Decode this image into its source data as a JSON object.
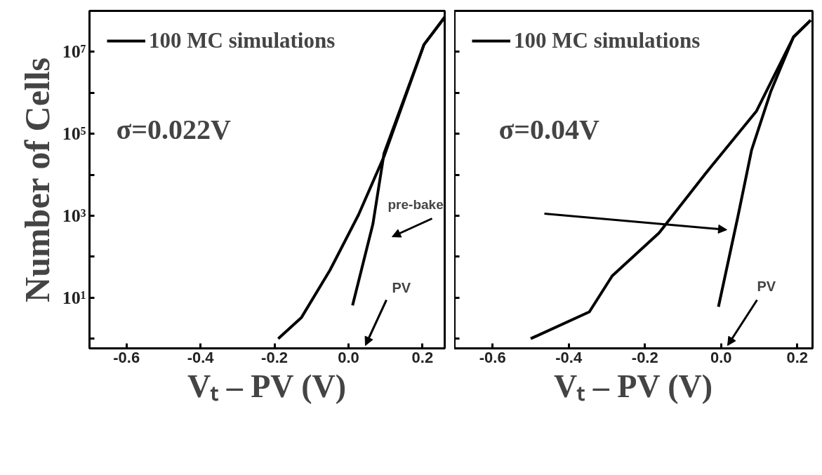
{
  "chart_data": [
    {
      "type": "line",
      "xlabel": "Vₜ – PV (V)",
      "ylabel": "Number of Cells",
      "log": "y",
      "legend": "top left",
      "grid": false,
      "marker": "none",
      "line_style": "solid",
      "xlim": [
        -0.7,
        0.26
      ],
      "xticks": [
        -0.6,
        -0.4,
        -0.2,
        {
          "value": 0,
          "label": "0.0"
        },
        0.2
      ],
      "ylim": [
        0.58,
        100000000
      ],
      "yticks": [
        {
          "value": 1,
          "label": null
        },
        {
          "value": 10,
          "label": "10¹"
        },
        {
          "value": 100,
          "label": null
        },
        {
          "value": 1000,
          "label": "10³"
        },
        {
          "value": 10000,
          "label": null
        },
        {
          "value": 100000,
          "label": "10⁵"
        },
        {
          "value": 1000000,
          "label": null
        },
        {
          "value": 10000000,
          "label": "10⁷"
        }
      ],
      "series": [
        {
          "name": "100 MC simulations",
          "color": "#000000",
          "x": [
            -0.19,
            -0.127,
            -0.05,
            0.027,
            0.096,
            0.204,
            0.26
          ],
          "values": [
            1,
            3.3,
            47,
            1050,
            28000,
            15000000,
            70000000
          ]
        },
        {
          "color": "#000000",
          "x": [
            0.011,
            0.066,
            0.096,
            0.204,
            0.26
          ],
          "values": [
            6.5,
            630,
            33000,
            15000000,
            70000000
          ]
        }
      ],
      "annotations": [
        "σ=0.022V",
        "pre-bake",
        "PV"
      ]
    },
    {
      "type": "line",
      "xlabel": "Vₜ – PV (V)",
      "log": "y",
      "legend": "top left",
      "grid": false,
      "marker": "none",
      "line_style": "solid",
      "tick_labels": "x",
      "xlim": [
        -0.7,
        0.24
      ],
      "xticks": [
        -0.6,
        -0.4,
        -0.2,
        {
          "value": 0,
          "label": "0.0"
        },
        0.2
      ],
      "ylim": [
        0.58,
        100000000
      ],
      "yticks": [
        {
          "value": 1,
          "label": null
        },
        {
          "value": 10,
          "label": null
        },
        {
          "value": 100,
          "label": null
        },
        {
          "value": 1000,
          "label": null
        },
        {
          "value": 10000,
          "label": null
        },
        {
          "value": 100000,
          "label": null
        },
        {
          "value": 1000000,
          "label": null
        },
        {
          "value": 10000000,
          "label": null
        }
      ],
      "series": [
        {
          "name": "100 MC simulations",
          "color": "#000000",
          "x": [
            -0.5,
            -0.346,
            -0.286,
            -0.163,
            -0.04,
            0.093,
            0.19,
            0.235
          ],
          "values": [
            1,
            4.5,
            34,
            380,
            11000,
            360000,
            23000000,
            59000000
          ]
        },
        {
          "color": "#000000",
          "x": [
            -0.007,
            0.044,
            0.08,
            0.13,
            0.19,
            0.235
          ],
          "values": [
            6,
            950,
            40000,
            1050000,
            23000000,
            59000000
          ]
        }
      ],
      "annotations": [
        "σ=0.04V",
        "PV"
      ]
    }
  ]
}
